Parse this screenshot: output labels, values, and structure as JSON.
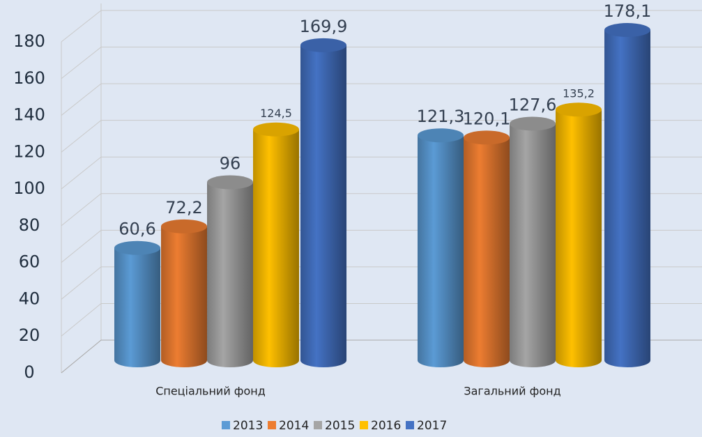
{
  "chart_data": {
    "type": "bar",
    "categories": [
      "Спеціальний фонд",
      "Загальний фонд"
    ],
    "series": [
      {
        "name": "2013",
        "color": "#5b9bd5",
        "values": [
          60.6,
          121.3
        ],
        "value_labels": [
          "60,6",
          "121,3"
        ]
      },
      {
        "name": "2014",
        "color": "#ed7d31",
        "values": [
          72.2,
          120.1
        ],
        "value_labels": [
          "72,2",
          "120,1"
        ]
      },
      {
        "name": "2015",
        "color": "#a5a5a5",
        "values": [
          96,
          127.6
        ],
        "value_labels": [
          "96",
          "127,6"
        ]
      },
      {
        "name": "2016",
        "color": "#ffc000",
        "values": [
          124.5,
          135.2
        ],
        "value_labels": [
          "124,5",
          "135,2"
        ]
      },
      {
        "name": "2017",
        "color": "#4472c4",
        "values": [
          169.9,
          178.1
        ],
        "value_labels": [
          "169,9",
          "178,1"
        ]
      }
    ],
    "ylim": [
      0,
      180
    ],
    "yticks": [
      0,
      20,
      40,
      60,
      80,
      100,
      120,
      140,
      160,
      180
    ],
    "grid": true,
    "legend": "bottom"
  }
}
